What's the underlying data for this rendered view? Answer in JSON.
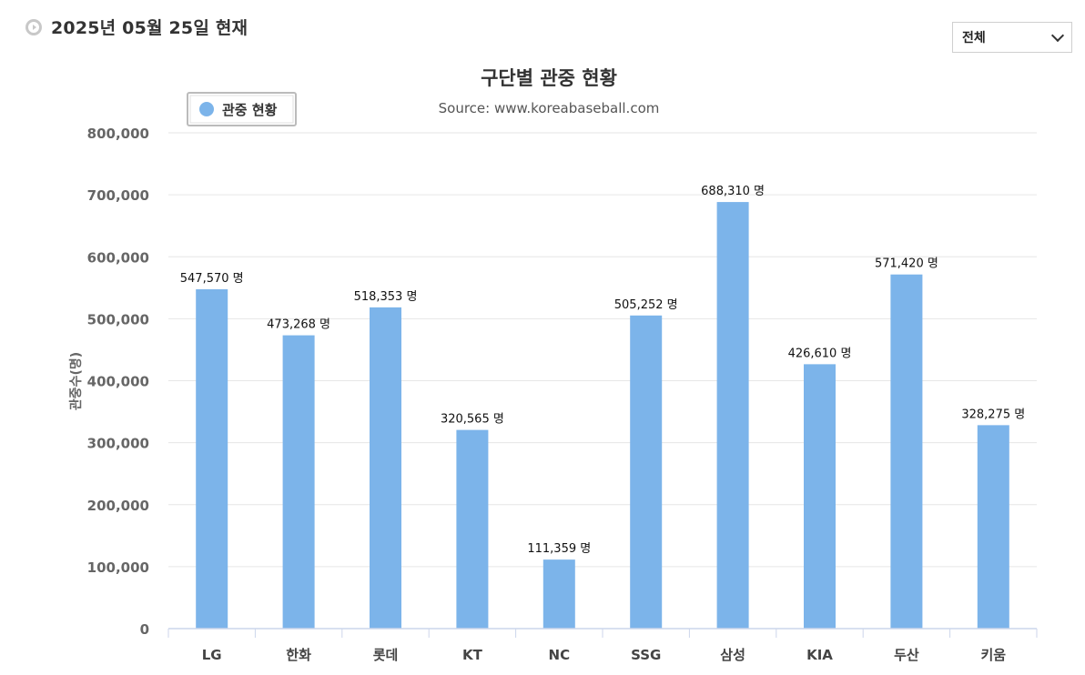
{
  "header": {
    "date_text": "2025년 05월 25일 현재",
    "icon": "circle-arrow-icon"
  },
  "filter": {
    "selected": "전체",
    "icon": "chevron-down-icon"
  },
  "colors": {
    "bar": "#7cb4ea",
    "grid": "#e6e6e6",
    "axis": "#ccd6eb",
    "text": "#333333"
  },
  "chart_data": {
    "type": "bar",
    "title": "구단별 관중 현황",
    "subtitle": "Source: www.koreabaseball.com",
    "ylabel": "관중수(명)",
    "xlabel": "",
    "ylim": [
      0,
      800000
    ],
    "yticks": [
      0,
      100000,
      200000,
      300000,
      400000,
      500000,
      600000,
      700000,
      800000
    ],
    "ytick_labels": [
      "0",
      "100,000",
      "200,000",
      "300,000",
      "400,000",
      "500,000",
      "600,000",
      "700,000",
      "800,000"
    ],
    "legend_position": "top-left",
    "grid": true,
    "categories": [
      "LG",
      "한화",
      "롯데",
      "KT",
      "NC",
      "SSG",
      "삼성",
      "KIA",
      "두산",
      "키움"
    ],
    "series": [
      {
        "name": "관중 현황",
        "values": [
          547570,
          473268,
          518353,
          320565,
          111359,
          505252,
          688310,
          426610,
          571420,
          328275
        ],
        "data_labels": [
          "547,570 명",
          "473,268 명",
          "518,353 명",
          "320,565 명",
          "111,359 명",
          "505,252 명",
          "688,310 명",
          "426,610 명",
          "571,420 명",
          "328,275 명"
        ]
      }
    ]
  }
}
